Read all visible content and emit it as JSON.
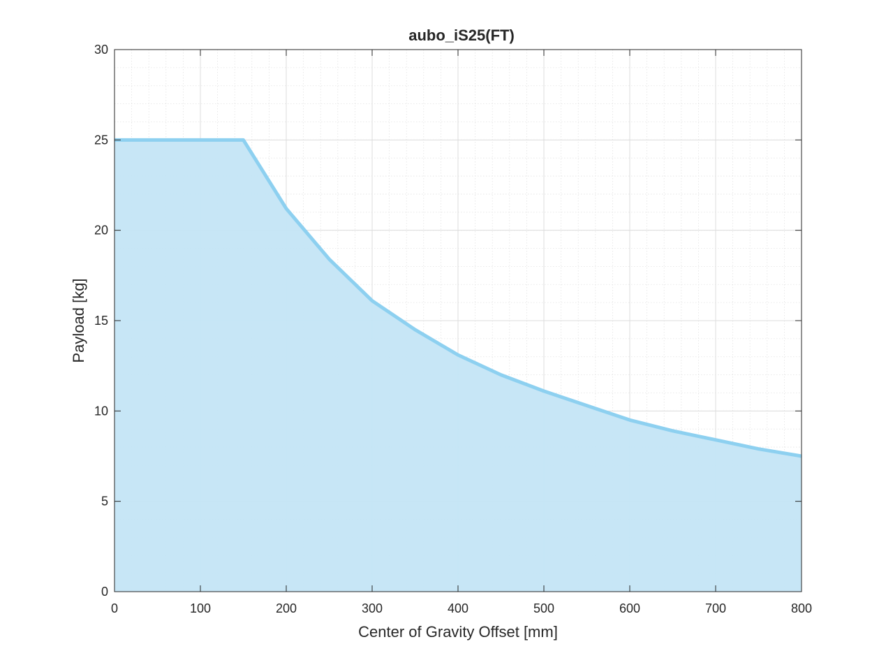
{
  "chart_data": {
    "type": "area",
    "title": "aubo_iS25(FT)",
    "xlabel": "Center of Gravity Offset [mm]",
    "ylabel": "Payload [kg]",
    "xlim": [
      0,
      800
    ],
    "ylim": [
      0,
      30
    ],
    "x_ticks": [
      0,
      100,
      200,
      300,
      400,
      500,
      600,
      700,
      800
    ],
    "y_ticks": [
      0,
      5,
      10,
      15,
      20,
      25,
      30
    ],
    "x_tick_labels": [
      "0",
      "100",
      "200",
      "300",
      "400",
      "500",
      "600",
      "700",
      "800"
    ],
    "y_tick_labels": [
      "0",
      "5",
      "10",
      "15",
      "20",
      "25",
      "30"
    ],
    "grid": true,
    "minor_grid": true,
    "series": [
      {
        "x": [
          0,
          50,
          100,
          150,
          175,
          200,
          250,
          300,
          350,
          400,
          450,
          500,
          550,
          600,
          650,
          700,
          750,
          800
        ],
        "y": [
          25,
          25,
          25,
          25,
          23.1,
          21.2,
          18.4,
          16.1,
          14.5,
          13.1,
          12.0,
          11.1,
          10.3,
          9.5,
          8.9,
          8.4,
          7.9,
          7.5
        ]
      }
    ],
    "line_color": "#8dd0f0",
    "fill_color": "#c4e5f6"
  }
}
